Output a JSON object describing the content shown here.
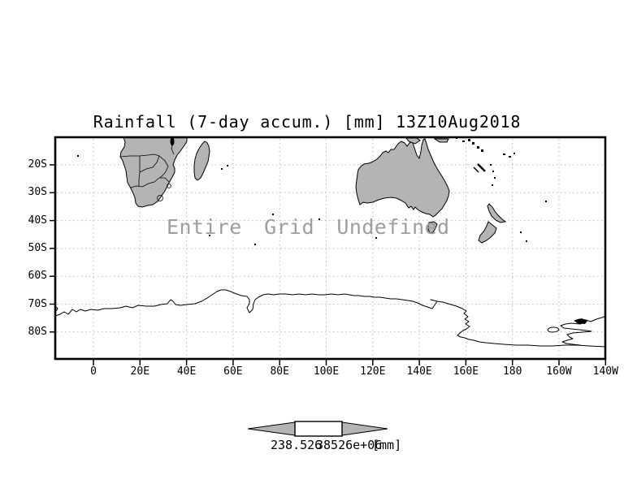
{
  "title": "Rainfall (7-day accum.) [mm] 13Z10Aug2018",
  "map": {
    "message": "Entire Grid Undefined",
    "y_axis_labels": [
      "20S",
      "30S",
      "40S",
      "50S",
      "60S",
      "70S",
      "80S"
    ],
    "x_axis_labels": [
      "0",
      "20E",
      "40E",
      "60E",
      "80E",
      "100E",
      "120E",
      "140E",
      "160E",
      "180",
      "160W",
      "140W"
    ]
  },
  "colorbar": {
    "min_label": "238.526",
    "max_label": "38526e+06",
    "units": "[mm]"
  },
  "colors": {
    "land": "#b4b4b4",
    "grid": "#b9b9b9",
    "message": "#9e9e9e",
    "ink": "#000000",
    "bg": "#ffffff"
  },
  "chart_data": {
    "type": "heatmap",
    "title": "Rainfall (7-day accum.) [mm] 13Z10Aug2018",
    "subtitle": "",
    "status": "Entire Grid Undefined",
    "values": [],
    "projection": "lat-lon map, southern hemisphere",
    "x_tick_labels": [
      "0",
      "20E",
      "40E",
      "60E",
      "80E",
      "100E",
      "120E",
      "140E",
      "160E",
      "180",
      "160W",
      "140W"
    ],
    "y_tick_labels": [
      "20S",
      "30S",
      "40S",
      "50S",
      "60S",
      "70S",
      "80S"
    ],
    "x_range": "approx 16W eastward to 139W",
    "y_range": "approx 10S to 90S",
    "grid": true,
    "legend_position": "bottom colorbar",
    "colorbar_labels": [
      "238.526",
      "38526e+06"
    ],
    "colorbar_units": "[mm]",
    "land_features": [
      "southern Africa with country borders",
      "Madagascar",
      "Australia",
      "Tasmania",
      "New Zealand",
      "New Guinea coast",
      "Pacific islands",
      "Antarctica coastline"
    ]
  }
}
